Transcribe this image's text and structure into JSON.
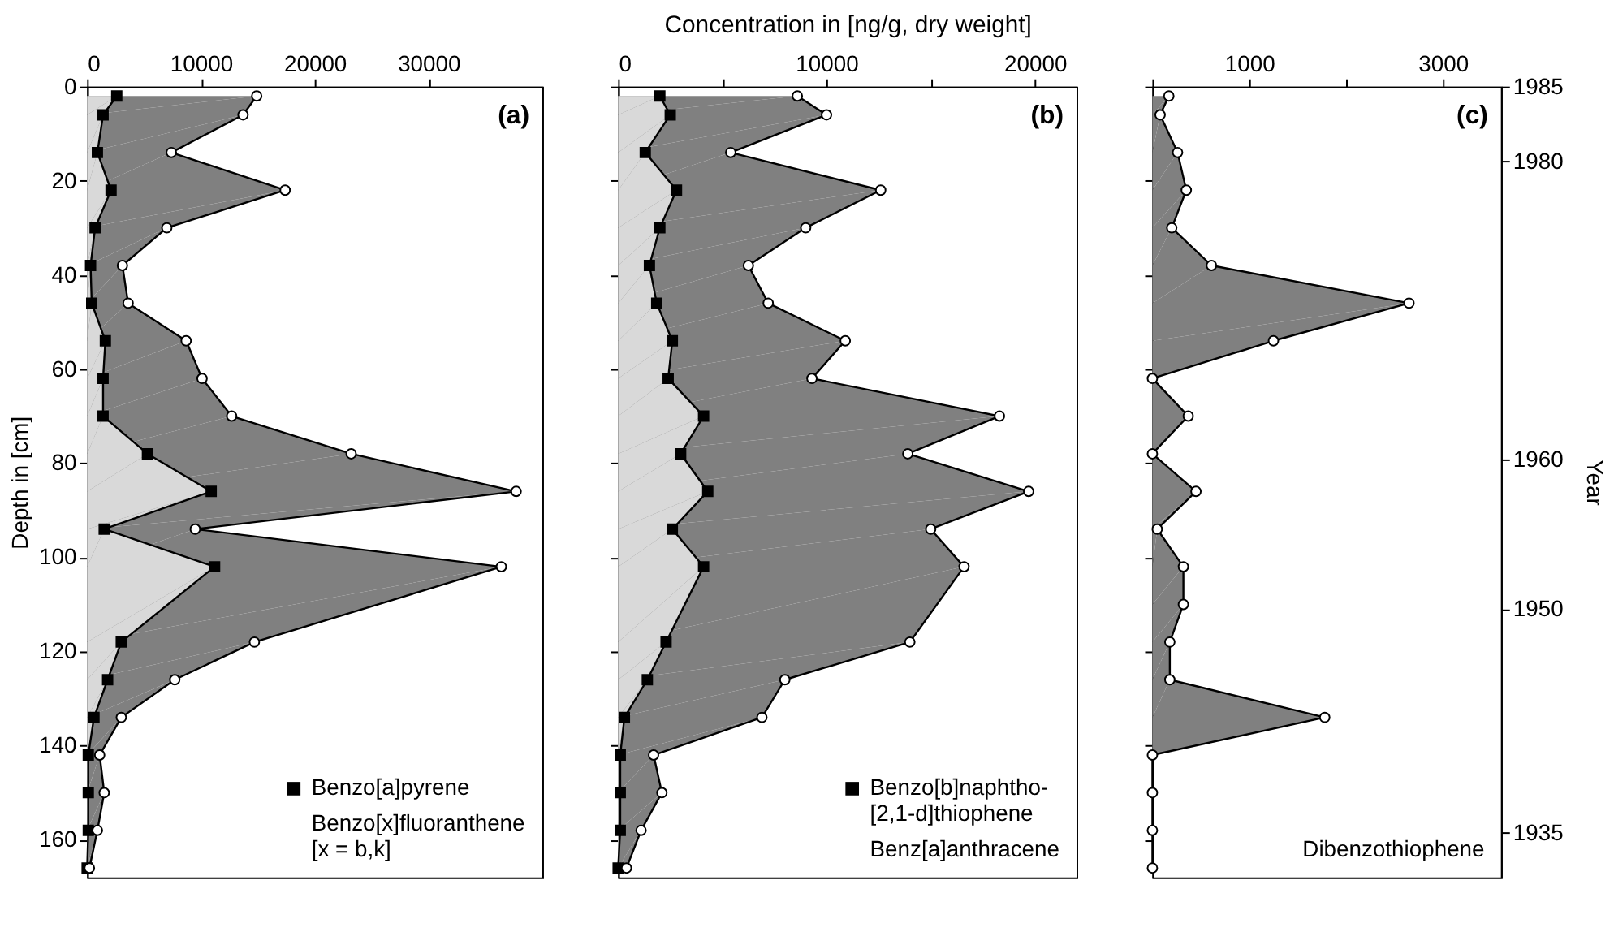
{
  "chart_data": [
    {
      "type": "area",
      "orientation": "horizontal",
      "ylabel": "Depth in [cm]",
      "annotations": [
        "(a)"
      ],
      "legend": "bottom right",
      "grid": false,
      "x": [
        2,
        6,
        14,
        22,
        30,
        38,
        46,
        54,
        62,
        70,
        78,
        86,
        94,
        102,
        118,
        126,
        134,
        142,
        150,
        158,
        166
      ],
      "xlim": [
        0,
        40000
      ],
      "xticks": [
        0,
        10000,
        20000,
        30000
      ],
      "ylim": [
        168,
        0
      ],
      "yticks": [
        0,
        20,
        40,
        60,
        80,
        100,
        120,
        140,
        160
      ],
      "series": [
        {
          "name": "Benzo[a]pyrene",
          "color": "#d9d9d9",
          "marker": "square",
          "values": [
            2600,
            1400,
            900,
            2100,
            700,
            300,
            400,
            1600,
            1400,
            1400,
            5300,
            10900,
            1500,
            11200,
            3000,
            1800,
            600,
            100,
            100,
            100,
            0
          ]
        },
        {
          "name": "Benzo[x]fluoranthene\n[x = b,k]",
          "color": "#808080",
          "marker": "circle",
          "values": [
            14900,
            13700,
            7400,
            17400,
            7000,
            3100,
            3600,
            8700,
            10100,
            12700,
            23200,
            37700,
            9500,
            36400,
            14700,
            7700,
            3000,
            1100,
            1500,
            900,
            200
          ]
        }
      ]
    },
    {
      "type": "area",
      "orientation": "horizontal",
      "xlabel": "Concentration in [ng/g, dry weight]",
      "annotations": [
        "(b)"
      ],
      "legend": "bottom right",
      "grid": false,
      "tick_labels": "x",
      "x": [
        2,
        6,
        14,
        22,
        30,
        38,
        46,
        54,
        62,
        70,
        78,
        86,
        94,
        102,
        118,
        126,
        134,
        142,
        150,
        158,
        166
      ],
      "xlim": [
        0,
        22000
      ],
      "xticks": [
        0,
        {
          "value": 5000,
          "label": null
        },
        10000,
        {
          "value": 15000,
          "label": null
        },
        20000
      ],
      "ylim": [
        168,
        0
      ],
      "yticks": [
        0,
        20,
        40,
        60,
        80,
        100,
        120,
        140,
        160
      ],
      "series": [
        {
          "name": "Benzo[b]naphtho-\n[2,1-d]thiophene",
          "color": "#d9d9d9",
          "marker": "square",
          "values": [
            2000,
            2500,
            1300,
            2800,
            2000,
            1500,
            1850,
            2600,
            2400,
            4100,
            3000,
            4300,
            2600,
            4100,
            2300,
            1400,
            300,
            100,
            100,
            100,
            0
          ]
        },
        {
          "name": "Benz[a]anthracene",
          "color": "#808080",
          "marker": "circle",
          "values": [
            8600,
            10000,
            5400,
            12600,
            9000,
            6250,
            7200,
            10900,
            9300,
            18300,
            13900,
            19700,
            15000,
            16600,
            14000,
            8000,
            6900,
            1700,
            2100,
            1100,
            400
          ]
        }
      ]
    },
    {
      "type": "area",
      "orientation": "horizontal",
      "y2label": "Year",
      "annotations": [
        "(c)"
      ],
      "legend": "bottom right",
      "grid": false,
      "tick_labels": "x",
      "x": [
        2,
        6,
        14,
        22,
        30,
        38,
        46,
        54,
        62,
        70,
        78,
        86,
        94,
        102,
        110,
        118,
        126,
        134,
        142,
        150,
        158,
        166
      ],
      "xlim": [
        0,
        3600
      ],
      "xticks": [
        {
          "value": 0,
          "label": null
        },
        1000,
        {
          "value": 2000,
          "label": null
        },
        3000
      ],
      "ylim": [
        168,
        0
      ],
      "yticks": [
        0,
        20,
        40,
        60,
        80,
        100,
        120,
        140,
        160
      ],
      "y2lim": [
        1932,
        1985
      ],
      "y2ticks": [
        {
          "value": 1935,
          "label": "1935"
        },
        {
          "value": 1950,
          "label": "1950"
        },
        {
          "value": 1960,
          "label": "1960"
        },
        {
          "value": 1980,
          "label": "1980"
        },
        {
          "value": 1985,
          "label": "1985"
        }
      ],
      "series": [
        {
          "name": "Dibenzothiophene",
          "color": "#808080",
          "marker": "circle",
          "values": [
            170,
            80,
            260,
            350,
            200,
            610,
            2650,
            1250,
            0,
            370,
            0,
            450,
            50,
            320,
            320,
            180,
            180,
            1780,
            0,
            0,
            0,
            0
          ]
        }
      ]
    }
  ]
}
